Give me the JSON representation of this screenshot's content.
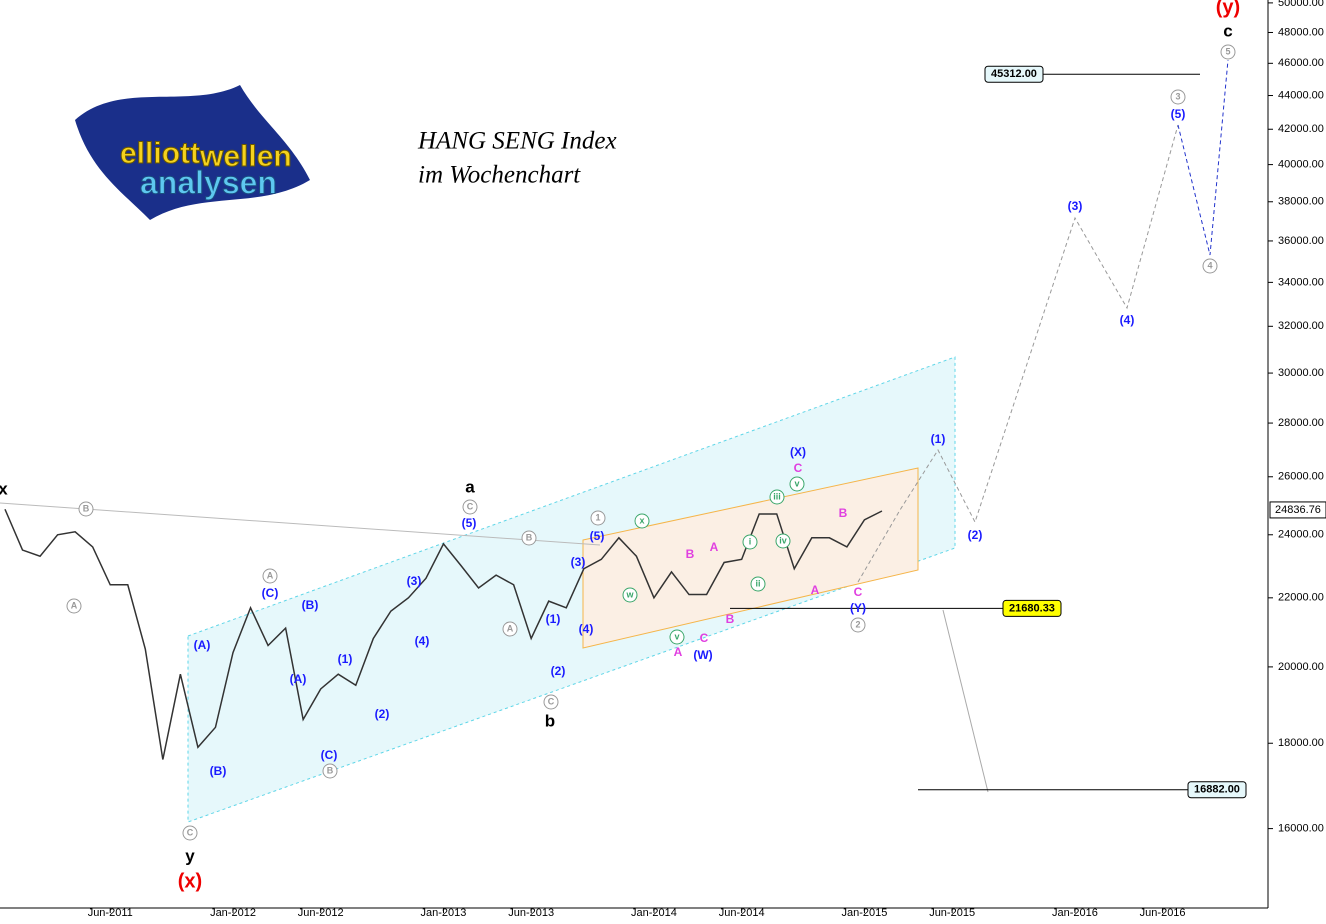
{
  "chart_data": {
    "type": "line",
    "title": "HANG SENG Index",
    "subtitle": "im Wochenchart",
    "logo": [
      "elliott",
      "wellen",
      "analysen"
    ],
    "log_scale": true,
    "x": [
      "Dec-2010",
      "Jan-2011",
      "Feb-2011",
      "Mar-2011",
      "Apr-2011",
      "May-2011",
      "Jun-2011",
      "Jul-2011",
      "Aug-2011",
      "Sep-2011",
      "Oct-2011",
      "Nov-2011",
      "Dec-2011",
      "Jan-2012",
      "Feb-2012",
      "Mar-2012",
      "Apr-2012",
      "May-2012",
      "Jun-2012",
      "Jul-2012",
      "Aug-2012",
      "Sep-2012",
      "Oct-2012",
      "Nov-2012",
      "Dec-2012",
      "Jan-2013",
      "Feb-2013",
      "Mar-2013",
      "Apr-2013",
      "May-2013",
      "Jun-2013",
      "Jul-2013",
      "Aug-2013",
      "Sep-2013",
      "Oct-2013",
      "Nov-2013",
      "Dec-2013",
      "Jan-2014",
      "Feb-2014",
      "Mar-2014",
      "Apr-2014",
      "May-2014",
      "Jun-2014",
      "Jul-2014",
      "Aug-2014",
      "Sep-2014",
      "Oct-2014",
      "Nov-2014",
      "Dec-2014",
      "Jan-2015",
      "Feb-2015"
    ],
    "series": [
      {
        "name": "HANG SENG",
        "color": "#333333",
        "values": [
          24860,
          23500,
          23300,
          24000,
          24100,
          23600,
          22400,
          22400,
          20500,
          17600,
          19800,
          17900,
          18400,
          20400,
          21700,
          20600,
          21100,
          18600,
          19400,
          19800,
          19500,
          20800,
          21600,
          22000,
          22600,
          23700,
          23000,
          22300,
          22700,
          22400,
          20800,
          21900,
          21700,
          22900,
          23200,
          23900,
          23300,
          22000,
          22800,
          22100,
          22100,
          23100,
          23200,
          24700,
          24700,
          22900,
          23900,
          23900,
          23600,
          24500,
          24800
        ]
      }
    ],
    "last_price": 24836.76,
    "levels": [
      {
        "value": 45312,
        "label": "45312.00"
      },
      21680.33,
      {
        "value": 16882,
        "label": "16882.00"
      }
    ],
    "ylim": [
      14300,
      50200
    ],
    "yticks": [
      {
        "value": 16000,
        "label": "16000.00"
      },
      {
        "value": 18000,
        "label": "18000.00"
      },
      {
        "value": 20000,
        "label": "20000.00"
      },
      {
        "value": 22000,
        "label": "22000.00"
      },
      {
        "value": 24000,
        "label": "24000.00"
      },
      {
        "value": 26000,
        "label": "26000.00"
      },
      {
        "value": 28000,
        "label": "28000.00"
      },
      {
        "value": 30000,
        "label": "30000.00"
      },
      {
        "value": 32000,
        "label": "32000.00"
      },
      {
        "value": 34000,
        "label": "34000.00"
      },
      {
        "value": 36000,
        "label": "36000.00"
      },
      {
        "value": 38000,
        "label": "38000.00"
      },
      {
        "value": 40000,
        "label": "40000.00"
      },
      {
        "value": 42000,
        "label": "42000.00"
      },
      {
        "value": 44000,
        "label": "44000.00"
      },
      {
        "value": 46000,
        "label": "46000.00"
      },
      {
        "value": 48000,
        "label": "48000.00"
      },
      {
        "value": 50000,
        "label": "50000.00"
      }
    ],
    "xticks": [
      "Jun-2011",
      "Jan-2012",
      "Jun-2012",
      "Jan-2013",
      "Jun-2013",
      "Jan-2014",
      "Jun-2014",
      "Jan-2015",
      "Jun-2015",
      "Jan-2016",
      "Jun-2016"
    ],
    "annotations": [
      "x",
      "a",
      "b",
      "y",
      "c",
      "(x)",
      "(y)",
      "(5)",
      "(C)",
      "(B)",
      "(A)",
      "(A)",
      "(B)",
      "(C)",
      "(1)",
      "(2)",
      "(3)",
      "(4)",
      "(3)",
      "(4)",
      "(5)",
      "(1)",
      "(2)",
      "(X)",
      "(W)",
      "(Y)",
      "(1)",
      "(2)",
      "(3)",
      "(4)",
      "(5)",
      "A",
      "B",
      "A",
      "C",
      "B",
      "C",
      "A",
      "B",
      "C",
      "B",
      "A",
      "A",
      "B",
      "C",
      "C",
      "B",
      "A",
      "C",
      "1",
      "2",
      "3",
      "4",
      "5",
      "x",
      "w",
      "v",
      "i",
      "ii",
      "iii",
      "iv",
      "v"
    ]
  }
}
